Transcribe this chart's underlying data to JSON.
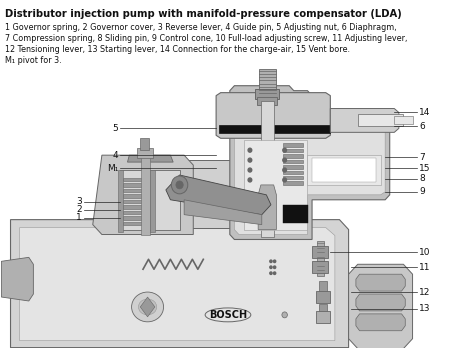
{
  "title": "Distributor injection pump with manifold-pressure compensator (LDA)",
  "description_lines": [
    "1 Governor spring, 2 Governor cover, 3 Reverse lever, 4 Guide pin, 5 Adjusting nut, 6 Diaphragm,",
    "7 Compression spring, 8 Sliding pin, 9 Control cone, 10 Full-load adjusting screw, 11 Adjusting lever,",
    "12 Tensioning lever, 13 Starting lever, 14 Connection for the charge-air, 15 Vent bore.",
    "M₁ pivot for 3."
  ],
  "bg_color": "#ffffff",
  "font_size_title": 7.2,
  "font_size_desc": 5.8,
  "font_size_labels": 6.5
}
